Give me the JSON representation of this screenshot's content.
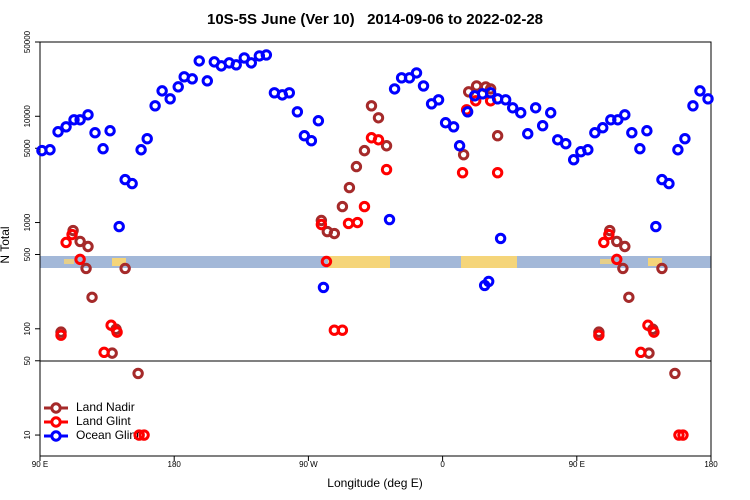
{
  "chart_data": {
    "type": "scatter",
    "title": "10S-5S June (Ver 10)   2014-09-06 to 2022-02-28",
    "x_label": "Longitude (deg E)",
    "y_label": "N Total",
    "xlim": [
      90,
      540
    ],
    "xticks": [
      {
        "value": 90,
        "label": "90 E"
      },
      180,
      {
        "value": 270,
        "label": "90 W"
      },
      {
        "value": 360,
        "label": "0"
      },
      {
        "value": 450,
        "label": "90 E"
      },
      {
        "value": 540,
        "label": "180"
      }
    ],
    "ylim": [
      6.35,
      50000
    ],
    "y_scale": "log",
    "yticks": [
      10,
      50,
      100,
      500,
      1000,
      5000,
      10000,
      50000
    ],
    "legend": "bottom-left",
    "series": [
      {
        "name": "Land Nadir",
        "color": "#a52a2a",
        "x": [
          104.1,
          112.2,
          116.9,
          122.2,
          124.9,
          120.9,
          138.4,
          141.0,
          147.1,
          155.8,
          278.7,
          282.7,
          287.4,
          292.8,
          297.5,
          302.2,
          307.6,
          312.3,
          317.0,
          322.4,
          374.1,
          377.5,
          382.8,
          388.9,
          392.2,
          396.9,
          464.8,
          472.1,
          476.8,
          482.2,
          484.9,
          480.9,
          498.4,
          501.0,
          507.1,
          515.8
        ],
        "values": [
          93,
          841,
          664,
          595,
          198,
          370,
          59,
          99,
          370,
          38,
          1045,
          822,
          788,
          1413,
          2133,
          3360,
          4750,
          12550,
          9680,
          5280,
          4350,
          17000,
          19300,
          18900,
          18100,
          6560,
          93,
          841,
          664,
          595,
          198,
          370,
          59,
          99,
          370,
          38
        ]
      },
      {
        "name": "Land Glint",
        "color": "#ff0000",
        "x": [
          104.1,
          107.5,
          111.5,
          116.9,
          137.7,
          133.0,
          141.7,
          156.5,
          159.8,
          278.7,
          282.1,
          287.4,
          292.8,
          296.9,
          302.9,
          307.6,
          312.3,
          317.0,
          322.4,
          373.4,
          376.1,
          382.2,
          392.2,
          396.9,
          464.8,
          468.1,
          471.5,
          476.8,
          497.7,
          492.9,
          501.7,
          518.5,
          521.2
        ],
        "values": [
          87,
          649,
          771,
          450,
          108,
          60,
          93,
          10,
          10,
          958,
          430,
          97,
          97,
          980,
          1000,
          1413,
          6280,
          6010,
          3150,
          2945,
          11510,
          13990,
          13990,
          2945,
          87,
          649,
          771,
          450,
          108,
          60,
          93,
          10,
          10
        ]
      },
      {
        "name": "Ocean Glint",
        "color": "#0000ff",
        "x": [
          91.3,
          96.7,
          102.1,
          107.5,
          112.8,
          116.9,
          122.2,
          126.9,
          132.3,
          137.0,
          143.1,
          147.1,
          151.8,
          157.8,
          161.9,
          167.2,
          171.9,
          177.3,
          182.7,
          186.7,
          192.1,
          196.8,
          202.2,
          206.9,
          211.6,
          216.9,
          221.6,
          227.0,
          231.7,
          237.1,
          241.8,
          247.2,
          252.5,
          257.2,
          262.6,
          267.3,
          272.0,
          276.7,
          280.1,
          324.4,
          327.8,
          332.5,
          337.8,
          342.5,
          347.2,
          352.6,
          357.3,
          362.0,
          367.4,
          371.4,
          376.8,
          381.5,
          386.8,
          392.2,
          396.9,
          402.3,
          407.0,
          412.4,
          417.1,
          422.4,
          427.1,
          432.5,
          437.2,
          442.6,
          447.9,
          452.7,
          457.4,
          462.1,
          467.4,
          472.8,
          477.5,
          482.2,
          486.9,
          492.3,
          497.0,
          503.0,
          507.1,
          511.8,
          517.8,
          522.5,
          527.9,
          532.6,
          538.0,
          388.2,
          390.9,
          398.9
        ],
        "values": [
          4750,
          4840,
          7150,
          7960,
          9270,
          9270,
          10330,
          7000,
          4950,
          7310,
          916,
          2535,
          2325,
          4840,
          6150,
          12550,
          17340,
          14590,
          18920,
          23500,
          22500,
          33200,
          21540,
          32500,
          29800,
          31800,
          30500,
          35400,
          31800,
          37000,
          37800,
          16630,
          15900,
          16630,
          11020,
          6560,
          5890,
          9080,
          245,
          1067,
          18100,
          23000,
          23000,
          25600,
          19300,
          13100,
          14290,
          8690,
          7960,
          5280,
          11020,
          15570,
          16260,
          16630,
          14590,
          14290,
          12020,
          10790,
          6850,
          12020,
          8150,
          10790,
          6010,
          5520,
          3900,
          4640,
          4840,
          7000,
          7800,
          9270,
          9270,
          10330,
          7000,
          4950,
          7310,
          916,
          2535,
          2325,
          4840,
          6150,
          12550,
          17340,
          14590,
          256,
          279,
          708
        ]
      }
    ]
  }
}
